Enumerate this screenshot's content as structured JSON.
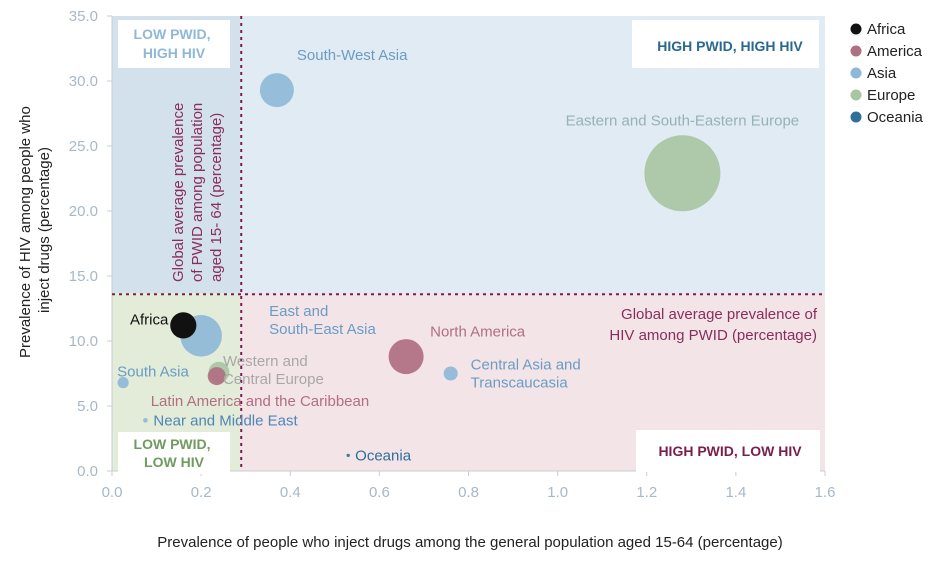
{
  "chart_data": {
    "type": "scatter",
    "subtype": "bubble",
    "xlabel": "Prevalence of people who inject drugs among the general population aged 15-64 (percentage)",
    "ylabel_lines": [
      "Prevalence of HIV among people who",
      "inject drugs (percentage)"
    ],
    "xlim": [
      0,
      1.6
    ],
    "ylim": [
      0,
      35
    ],
    "x_ticks": [
      0.0,
      0.2,
      0.4,
      0.6,
      0.8,
      1.0,
      1.2,
      1.4,
      1.6
    ],
    "x_tick_labels": [
      "0.0",
      "0.2",
      "0.4",
      "0.6",
      "0.8",
      "1.0",
      "1.2",
      "1.4",
      "1.6"
    ],
    "y_ticks": [
      0,
      5,
      10,
      15,
      20,
      25,
      30,
      35
    ],
    "y_tick_labels": [
      "0.0",
      "5.0",
      "10.0",
      "15.0",
      "20.0",
      "25.0",
      "30.0",
      "35.0"
    ],
    "reference_lines": {
      "global_pwid_x": 0.29,
      "global_hiv_y": 13.6,
      "vertical_label_lines": [
        "Global average prevalence",
        "of PWID among population",
        "aged 15- 64 (percentage)"
      ],
      "horizontal_label_lines": [
        "Global average prevalence of",
        "HIV among PWID (percentage)"
      ]
    },
    "quadrants": {
      "top_left": [
        "LOW PWID,",
        "HIGH HIV"
      ],
      "top_right": [
        "HIGH PWID, HIGH HIV"
      ],
      "bottom_left": [
        "LOW PWID,",
        "LOW HIV"
      ],
      "bottom_right": [
        "HIGH PWID, LOW HIV"
      ]
    },
    "legend": [
      {
        "name": "Africa",
        "color": "#111111"
      },
      {
        "name": "America",
        "color": "#b06f82"
      },
      {
        "name": "Asia",
        "color": "#8fb8d8"
      },
      {
        "name": "Europe",
        "color": "#a9c6a3"
      },
      {
        "name": "Oceania",
        "color": "#2f6f99"
      }
    ],
    "points": [
      {
        "id": "south-west-asia",
        "label_lines": [
          "South-West Asia"
        ],
        "x": 0.37,
        "y": 29.3,
        "size": 3.2,
        "group": "Asia",
        "label_color": "#6a9cc4"
      },
      {
        "id": "eastern-south-eastern-europe",
        "label_lines": [
          "Eastern and South-Eastern Europe"
        ],
        "x": 1.28,
        "y": 22.9,
        "size": 16,
        "group": "Europe",
        "label_color": "#98b0b8"
      },
      {
        "id": "africa",
        "label_lines": [
          "Africa"
        ],
        "x": 0.16,
        "y": 11.2,
        "size": 1.9,
        "group": "Africa",
        "label_color": "#111111"
      },
      {
        "id": "east-south-east-asia",
        "label_lines": [
          "East and",
          "South-East Asia"
        ],
        "x": 0.2,
        "y": 10.4,
        "size": 4.8,
        "group": "Asia",
        "label_color": "#6a9cc4"
      },
      {
        "id": "north-america",
        "label_lines": [
          "North America"
        ],
        "x": 0.66,
        "y": 8.8,
        "size": 3.4,
        "group": "America",
        "label_color": "#b06f82"
      },
      {
        "id": "central-asia-transcaucasia",
        "label_lines": [
          "Central Asia and",
          "Transcaucasia"
        ],
        "x": 0.76,
        "y": 7.5,
        "size": 0.55,
        "group": "Asia",
        "label_color": "#6a9cc4"
      },
      {
        "id": "south-asia",
        "label_lines": [
          "South Asia"
        ],
        "x": 0.025,
        "y": 6.8,
        "size": 0.35,
        "group": "Asia",
        "label_color": "#6a9cc4"
      },
      {
        "id": "western-central-europe",
        "label_lines": [
          "Western and",
          "Central Europe"
        ],
        "x": 0.24,
        "y": 7.6,
        "size": 1.2,
        "group": "Europe",
        "label_color": "#a8a8a8"
      },
      {
        "id": "latin-america-caribbean",
        "label_lines": [
          "Latin America and the Caribbean"
        ],
        "x": 0.235,
        "y": 7.3,
        "size": 0.9,
        "group": "America",
        "label_color": "#b06f82"
      },
      {
        "id": "near-middle-east",
        "label_lines": [
          "Near and Middle East"
        ],
        "x": 0.075,
        "y": 3.9,
        "size": 0.06,
        "group": "Asia",
        "label_color": "#4f86b5"
      },
      {
        "id": "oceania",
        "label_lines": [
          "Oceania"
        ],
        "x": 0.53,
        "y": 1.2,
        "size": 0.03,
        "group": "Oceania",
        "label_color": "#2f6f99"
      }
    ]
  }
}
